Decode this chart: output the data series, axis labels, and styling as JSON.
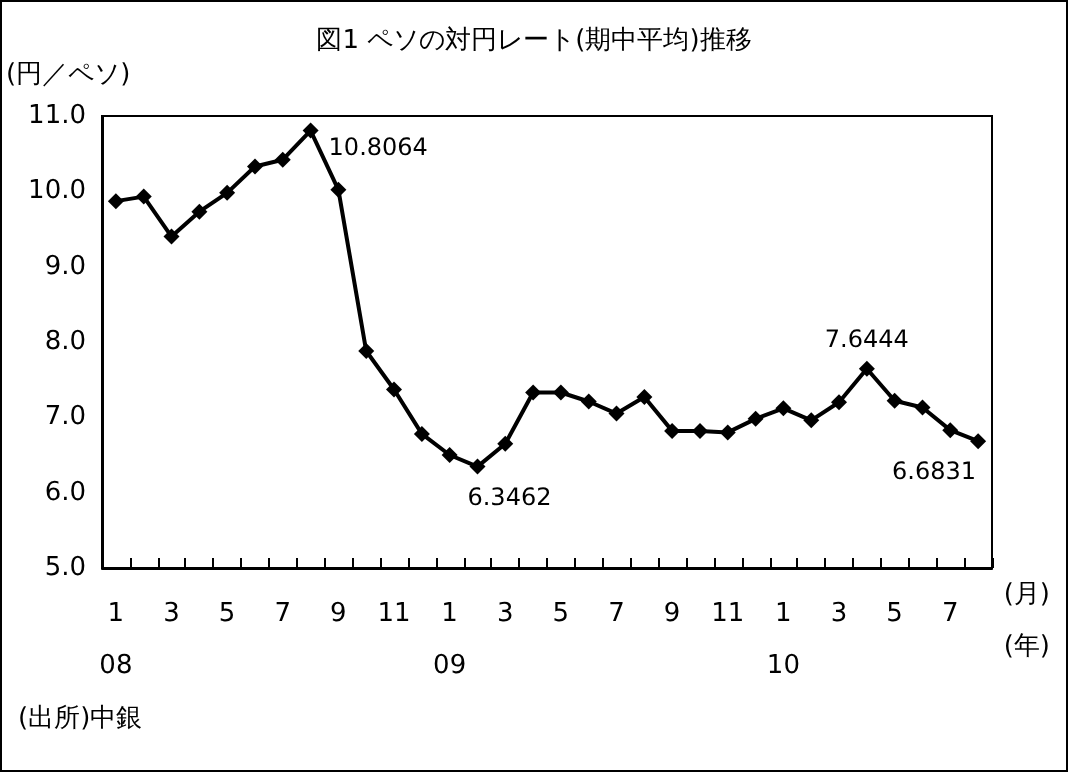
{
  "chart_data": {
    "type": "line",
    "title": "図1 ペソの対円レート(期中平均)推移",
    "ylabel": "(円／ペソ)",
    "annotations": [
      "(月)",
      "(年)",
      "(出所)中銀"
    ],
    "categories": [
      "1\n08",
      null,
      "3",
      null,
      "5",
      null,
      "7",
      null,
      "9",
      null,
      "11",
      null,
      "1\n09",
      null,
      "3",
      null,
      "5",
      null,
      "7",
      null,
      "9",
      null,
      "11",
      null,
      "1\n10",
      null,
      "3",
      null,
      "5",
      null,
      "7",
      null
    ],
    "series": [
      {
        "color": "#000000",
        "values": [
          9.87,
          9.93,
          9.4,
          9.73,
          9.98,
          10.33,
          10.42,
          10.8064,
          10.02,
          7.88,
          7.37,
          6.78,
          6.5,
          6.3462,
          6.65,
          7.33,
          7.33,
          7.21,
          7.05,
          7.27,
          6.82,
          6.82,
          6.8,
          6.98,
          7.12,
          6.96,
          7.2,
          7.6444,
          7.22,
          7.13,
          6.83,
          6.6831
        ],
        "value_labels": [
          null,
          null,
          null,
          null,
          null,
          null,
          null,
          "10.8064",
          null,
          null,
          null,
          null,
          null,
          "6.3462",
          null,
          null,
          null,
          null,
          null,
          null,
          null,
          null,
          null,
          null,
          null,
          null,
          null,
          "7.6444",
          null,
          null,
          null,
          "6.6831"
        ]
      }
    ],
    "ylim": [
      5,
      11
    ],
    "yticks": [
      {
        "value": 5,
        "label": "5.0"
      },
      {
        "value": 6,
        "label": "6.0"
      },
      {
        "value": 7,
        "label": "7.0"
      },
      {
        "value": 8,
        "label": "8.0"
      },
      {
        "value": 9,
        "label": "9.0"
      },
      {
        "value": 10,
        "label": "10.0"
      },
      {
        "value": 11,
        "label": "11.0"
      }
    ],
    "grid": false,
    "marker": "diamond",
    "line_style": "solid"
  }
}
